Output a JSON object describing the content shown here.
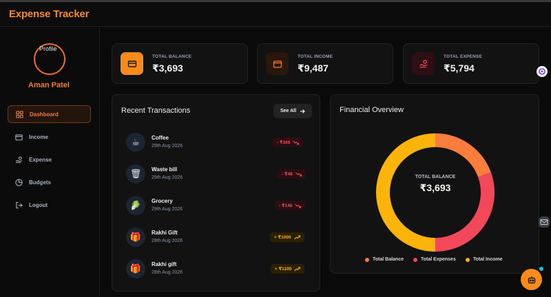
{
  "app": {
    "title": "Expense Tracker"
  },
  "user": {
    "avatar_alt": "Profile",
    "name": "Aman Patel"
  },
  "nav": [
    {
      "label": "Dashboard",
      "icon": "dashboard-icon",
      "active": true
    },
    {
      "label": "Income",
      "icon": "wallet-icon",
      "active": false
    },
    {
      "label": "Expense",
      "icon": "hand-coins-icon",
      "active": false
    },
    {
      "label": "Budgets",
      "icon": "pie-icon",
      "active": false
    },
    {
      "label": "Logout",
      "icon": "logout-icon",
      "active": false
    }
  ],
  "stats": {
    "balance": {
      "label": "TOTAL BALANCE",
      "value": "₹3,693",
      "icon": "card-icon"
    },
    "income": {
      "label": "TOTAL INCOME",
      "value": "₹9,487",
      "icon": "wallet-icon"
    },
    "expense": {
      "label": "TOTAL EXPENSE",
      "value": "₹5,794",
      "icon": "hand-coins-icon"
    }
  },
  "transactions": {
    "title": "Recent Transactions",
    "see_all": "See All",
    "items": [
      {
        "name": "Coffee",
        "date": "29th Aug 2026",
        "amount": "- ₹166",
        "type": "expense",
        "icon": "☕"
      },
      {
        "name": "Waste bill",
        "date": "29th Aug 2026",
        "amount": "- ₹48",
        "type": "expense",
        "icon": "🗑"
      },
      {
        "name": "Grocery",
        "date": "29th Aug 2026",
        "amount": "- ₹146",
        "type": "expense",
        "icon": "🥬"
      },
      {
        "name": "Rakhi Gift",
        "date": "28th Aug 2026",
        "amount": "+ ₹1000",
        "type": "income",
        "icon": "🎁"
      },
      {
        "name": "Rakhi gift",
        "date": "28th Aug 2026",
        "amount": "+ ₹1100",
        "type": "income",
        "icon": "🎁"
      }
    ]
  },
  "overview": {
    "title": "Financial Overview",
    "center_label": "TOTAL BALANCE",
    "center_value": "₹3,693"
  },
  "chart_data": {
    "type": "pie",
    "categories": [
      "Total Balance",
      "Total Expenses",
      "Total Income"
    ],
    "values": [
      3693,
      5794,
      9487
    ],
    "colors": [
      "#fa7d3c",
      "#f2485a",
      "#fdb40a"
    ],
    "legend": "bottom"
  },
  "colors": {
    "accent": "#f47b35",
    "expense": "#f24a5a",
    "income": "#f5b400"
  }
}
